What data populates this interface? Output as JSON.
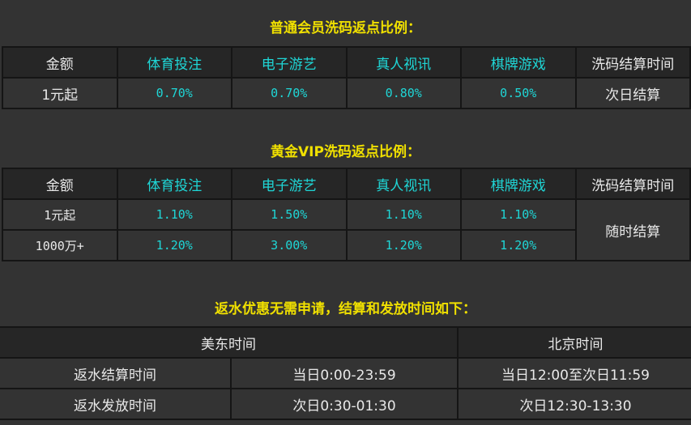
{
  "normal": {
    "title": "普通会员洗码返点比例：",
    "headers": [
      "金额",
      "体育投注",
      "电子游艺",
      "真人视讯",
      "棋牌游戏",
      "洗码结算时间"
    ],
    "rows": [
      {
        "amount": "1元起",
        "values": [
          "0.70%",
          "0.70%",
          "0.80%",
          "0.50%"
        ],
        "settle": "次日结算"
      }
    ]
  },
  "gold": {
    "title": "黄金VIP洗码返点比例：",
    "headers": [
      "金额",
      "体育投注",
      "电子游艺",
      "真人视讯",
      "棋牌游戏",
      "洗码结算时间"
    ],
    "rows": [
      {
        "amount": "1元起",
        "values": [
          "1.10%",
          "1.50%",
          "1.10%",
          "1.10%"
        ]
      },
      {
        "amount": "1000万+",
        "values": [
          "1.20%",
          "3.00%",
          "1.20%",
          "1.20%"
        ]
      }
    ],
    "settle": "随时结算"
  },
  "rebate": {
    "title": "返水优惠无需申请，结算和发放时间如下：",
    "headers": [
      "美东时间",
      "北京时间"
    ],
    "rows": [
      {
        "label": "返水结算时间",
        "est": "当日0:00-23:59",
        "bj": "当日12:00至次日11:59"
      },
      {
        "label": "返水发放时间",
        "est": "次日0:30-01:30",
        "bj": "次日12:30-13:30"
      }
    ]
  },
  "colors": {
    "title": "#f0e000",
    "accent": "#1fd6d6",
    "background": "#333333"
  }
}
